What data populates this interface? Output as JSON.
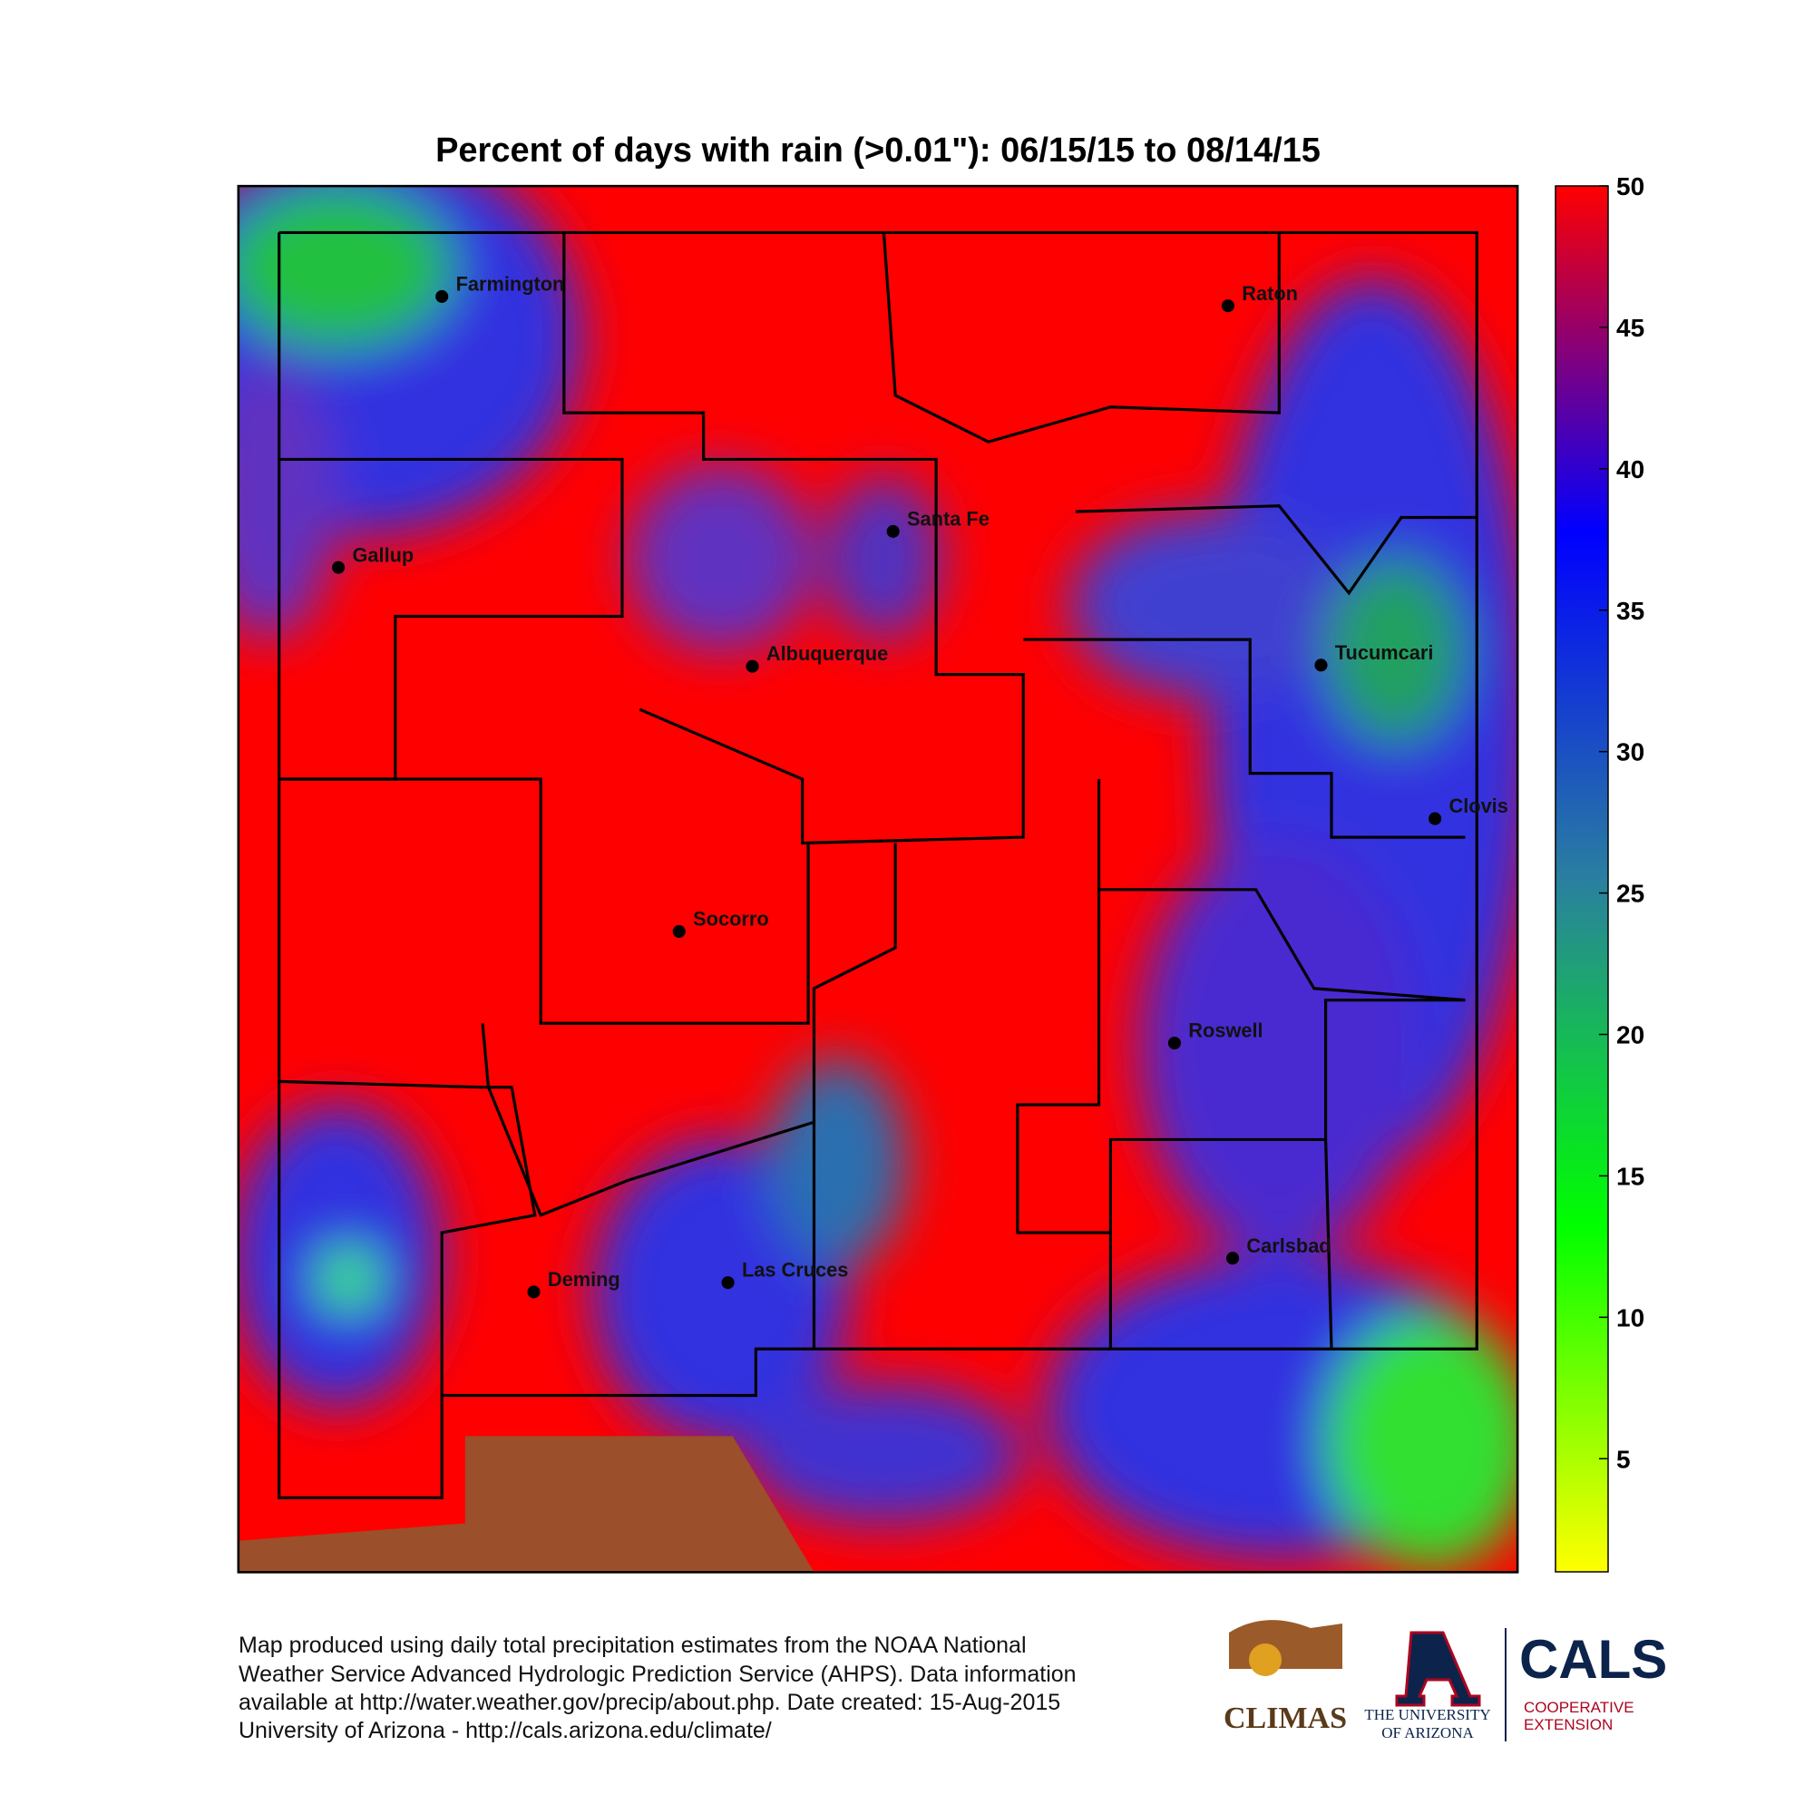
{
  "title": "Percent of days with rain (>0.01\"): 06/15/15 to 08/14/15",
  "cities": [
    "Farmington",
    "Raton",
    "Santa Fe",
    "Gallup",
    "Albuquerque",
    "Tucumcari",
    "Clovis",
    "Socorro",
    "Roswell",
    "Carlsbad",
    "Las Cruces",
    "Deming"
  ],
  "colorbar": {
    "lim": [
      1,
      50
    ],
    "ticks": [
      5,
      10,
      15,
      20,
      25,
      30,
      35,
      40,
      45,
      50
    ],
    "colors": [
      "#ffff00",
      "#00ff00",
      "#2a7fa0",
      "#0000ff",
      "#ff0000"
    ]
  },
  "footer": [
    "Map produced using daily total precipitation estimates from the NOAA National",
    "Weather Service Advanced Hydrologic Prediction Service (AHPS). Data information",
    "available at http://water.weather.gov/precip/about.php. Date created: 15-Aug-2015",
    "University of Arizona - http://cals.arizona.edu/climate/"
  ],
  "logos": {
    "climas": "CLIMAS",
    "ua_line1": "THE UNIVERSITY",
    "ua_line2": "OF ARIZONA",
    "cals": "CALS",
    "cals_line1": "COOPERATIVE",
    "cals_line2": "EXTENSION"
  }
}
